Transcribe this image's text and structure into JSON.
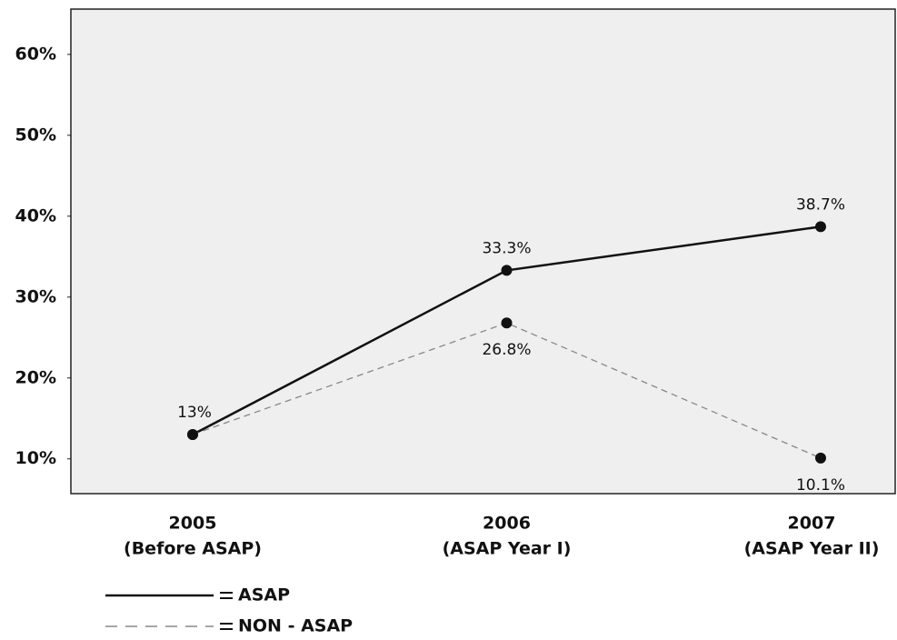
{
  "chart_data": {
    "type": "line",
    "categories": [
      "2005",
      "2006",
      "2007"
    ],
    "category_sublabels": [
      "(Before ASAP)",
      "(ASAP Year I)",
      "(ASAP Year II)"
    ],
    "series": [
      {
        "name": "ASAP",
        "color": "#111111",
        "dash": "solid",
        "values": [
          13,
          33.3,
          38.7
        ],
        "value_labels": [
          "13%",
          "33.3%",
          "38.7%"
        ]
      },
      {
        "name": "NON - ASAP",
        "color": "#888888",
        "dash": "dashed",
        "values": [
          13,
          26.8,
          10.1
        ],
        "value_labels": [
          null,
          "26.8%",
          "10.1%"
        ]
      }
    ],
    "ylim": [
      5.7,
      65.6
    ],
    "yticks": [
      {
        "value": 10,
        "label": "10%"
      },
      {
        "value": 20,
        "label": "20%"
      },
      {
        "value": 30,
        "label": "30%"
      },
      {
        "value": 40,
        "label": "40%"
      },
      {
        "value": 50,
        "label": "50%"
      },
      {
        "value": 60,
        "label": "60%"
      }
    ],
    "grid": false
  }
}
